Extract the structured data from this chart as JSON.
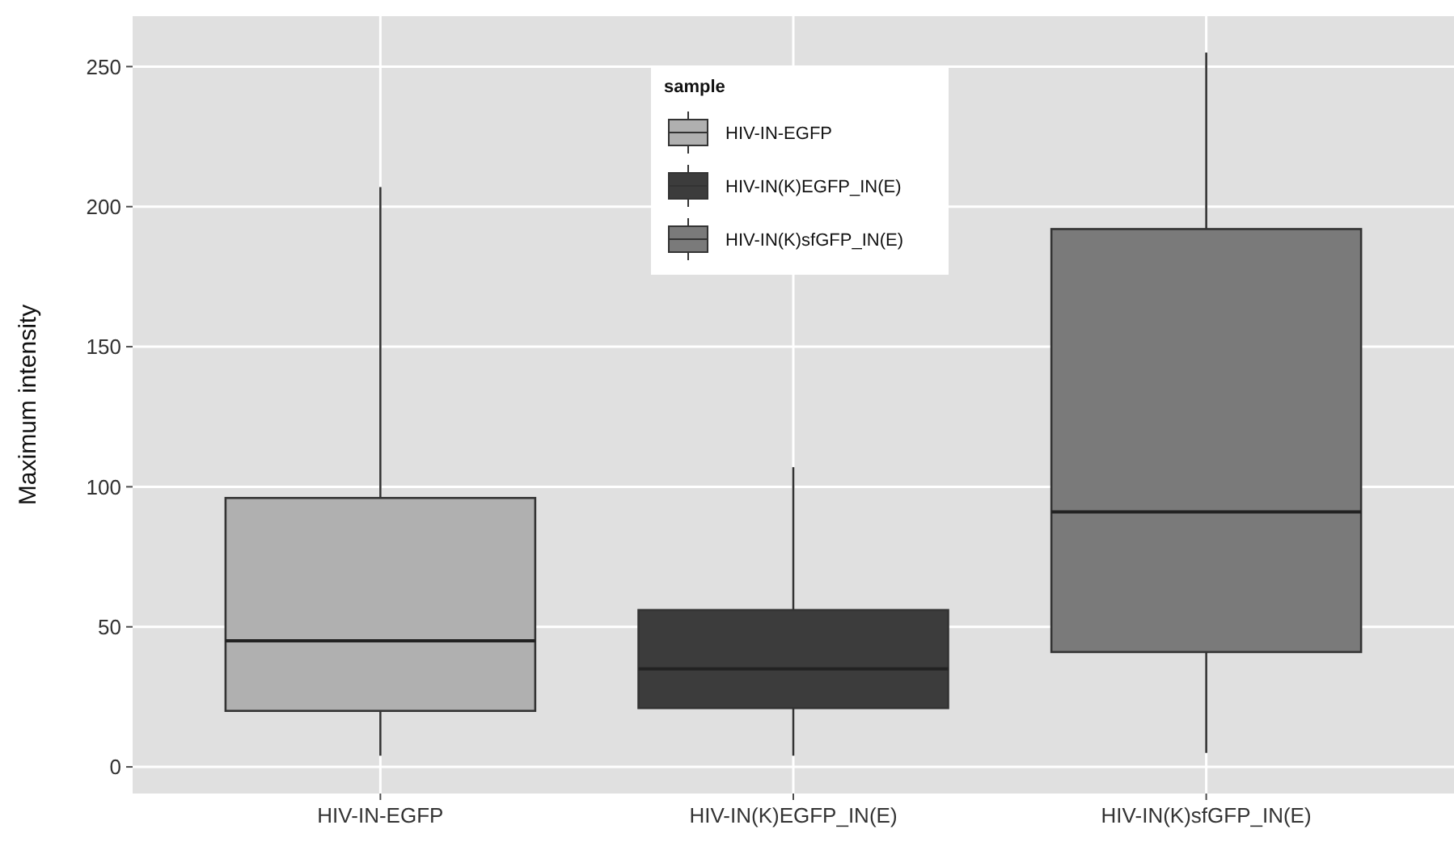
{
  "chart_data": {
    "type": "box",
    "ylabel": "Maximum intensity",
    "legend_title": "sample",
    "categories": [
      "HIV-IN-EGFP",
      "HIV-IN(K)EGFP_IN(E)",
      "HIV-IN(K)sfGFP_IN(E)"
    ],
    "series": [
      {
        "name": "HIV-IN-EGFP",
        "color": "#b0b0b0",
        "boxes": [
          {
            "low": 4,
            "q1": 20,
            "median": 45,
            "q3": 96,
            "high": 207
          },
          null,
          null
        ]
      },
      {
        "name": "HIV-IN(K)EGFP_IN(E)",
        "color": "#3c3c3c",
        "boxes": [
          null,
          {
            "low": 4,
            "q1": 21,
            "median": 35,
            "q3": 56,
            "high": 107
          },
          null
        ]
      },
      {
        "name": "HIV-IN(K)sfGFP_IN(E)",
        "color": "#7a7a7a",
        "boxes": [
          null,
          null,
          {
            "low": 5,
            "q1": 41,
            "median": 91,
            "q3": 192,
            "high": 255
          }
        ]
      }
    ],
    "ylim": [
      -9.5,
      268
    ],
    "yticks": [
      0,
      50,
      100,
      150,
      200,
      250
    ],
    "grid": true,
    "legend": "top"
  }
}
